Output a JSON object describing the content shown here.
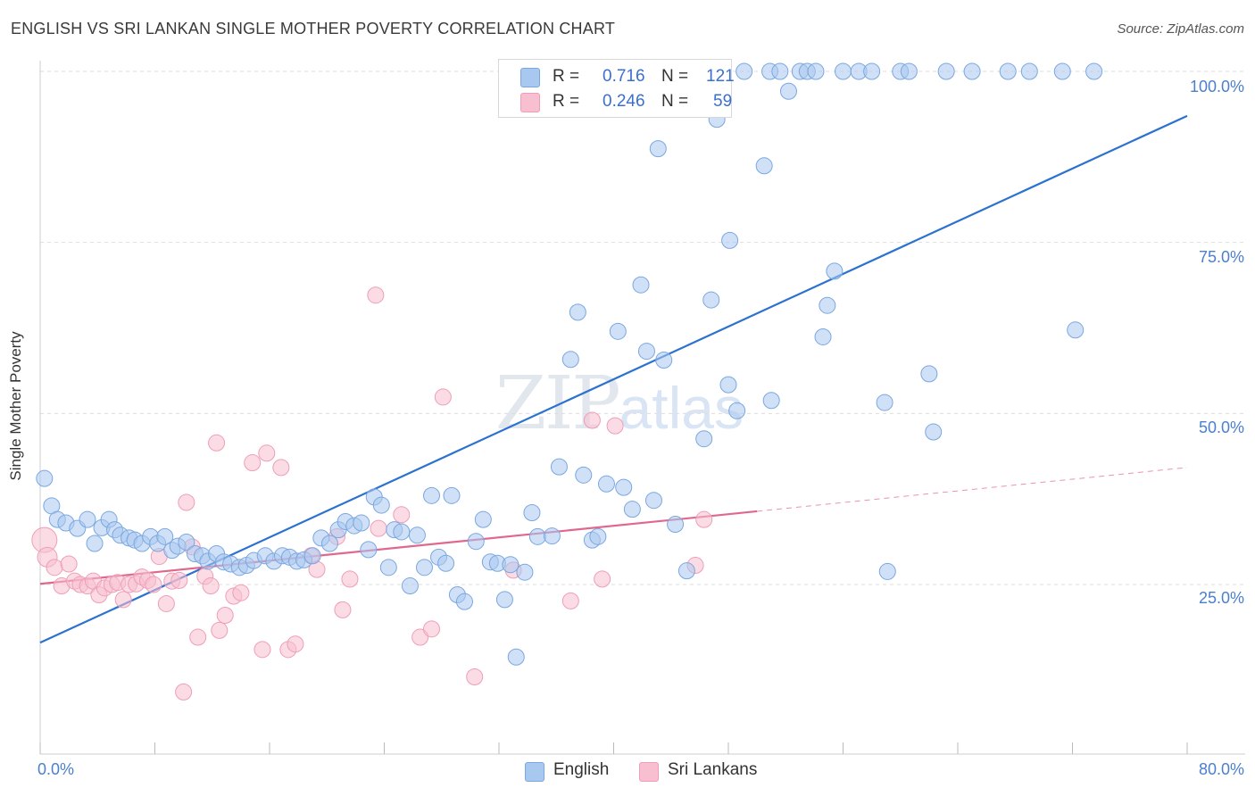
{
  "header": {
    "title": "ENGLISH VS SRI LANKAN SINGLE MOTHER POVERTY CORRELATION CHART",
    "source": "Source: ZipAtlas.com"
  },
  "watermark": {
    "zip": "ZIP",
    "atlas": "atlas"
  },
  "legend": {
    "english": {
      "r_label": "R =",
      "r_value": "0.716",
      "n_label": "N =",
      "n_value": "121"
    },
    "srilankan": {
      "r_label": "R =",
      "r_value": "0.246",
      "n_label": "N =",
      "n_value": "59"
    }
  },
  "bottom_legend": {
    "english": "English",
    "srilankan": "Sri Lankans"
  },
  "colors": {
    "english_fill": "#a9c8f0",
    "english_stroke": "#7aa7e0",
    "english_line": "#2b72d0",
    "srilankan_fill": "#f7bfd0",
    "srilankan_stroke": "#ef9db8",
    "srilankan_line": "#e0688e",
    "grid": "#dddddd",
    "tick_text": "#4a7fcf"
  },
  "chart_data": {
    "type": "scatter",
    "title": "ENGLISH VS SRI LANKAN SINGLE MOTHER POVERTY CORRELATION CHART",
    "xlabel": "",
    "ylabel": "Single Mother Poverty",
    "xlim": [
      0,
      80
    ],
    "ylim": [
      0,
      105
    ],
    "x_tick_labels": [
      "0.0%",
      "80.0%"
    ],
    "y_ticks": [
      25,
      50,
      75,
      100
    ],
    "y_tick_labels": [
      "25.0%",
      "50.0%",
      "75.0%",
      "100.0%"
    ],
    "grid": true,
    "series": [
      {
        "name": "English",
        "r": 0.716,
        "n": 121,
        "trend": {
          "x": [
            0,
            80
          ],
          "y": [
            16.5,
            93.5
          ]
        },
        "points": [
          [
            0.3,
            40.5
          ],
          [
            0.8,
            36.5
          ],
          [
            1.2,
            34.5
          ],
          [
            1.8,
            34
          ],
          [
            2.6,
            33.2
          ],
          [
            3.3,
            34.5
          ],
          [
            3.8,
            31
          ],
          [
            4.3,
            33.3
          ],
          [
            4.8,
            34.5
          ],
          [
            5.2,
            33
          ],
          [
            5.6,
            32.2
          ],
          [
            6.2,
            31.8
          ],
          [
            6.6,
            31.5
          ],
          [
            7.1,
            31
          ],
          [
            7.7,
            32
          ],
          [
            8.2,
            31
          ],
          [
            8.7,
            32
          ],
          [
            9.2,
            30
          ],
          [
            9.6,
            30.6
          ],
          [
            10.2,
            31.2
          ],
          [
            10.8,
            29.5
          ],
          [
            11.3,
            29.2
          ],
          [
            11.7,
            28.4
          ],
          [
            12.3,
            29.5
          ],
          [
            12.8,
            28.3
          ],
          [
            13.3,
            28
          ],
          [
            13.9,
            27.5
          ],
          [
            14.4,
            27.8
          ],
          [
            14.9,
            28.5
          ],
          [
            15.7,
            29.2
          ],
          [
            16.3,
            28.4
          ],
          [
            16.9,
            29.2
          ],
          [
            17.4,
            29
          ],
          [
            17.9,
            28.4
          ],
          [
            18.4,
            28.6
          ],
          [
            19.0,
            29.2
          ],
          [
            19.6,
            31.8
          ],
          [
            20.2,
            31
          ],
          [
            20.8,
            33
          ],
          [
            21.3,
            34.2
          ],
          [
            21.9,
            33.6
          ],
          [
            22.4,
            34
          ],
          [
            22.9,
            30.1
          ],
          [
            23.3,
            37.8
          ],
          [
            23.8,
            36.6
          ],
          [
            24.3,
            27.5
          ],
          [
            24.7,
            33
          ],
          [
            25.2,
            32.7
          ],
          [
            25.8,
            24.8
          ],
          [
            26.3,
            32.2
          ],
          [
            26.8,
            27.5
          ],
          [
            27.3,
            38
          ],
          [
            27.8,
            29
          ],
          [
            28.3,
            28.1
          ],
          [
            28.7,
            38
          ],
          [
            29.1,
            23.5
          ],
          [
            29.6,
            22.5
          ],
          [
            30.4,
            31.3
          ],
          [
            30.9,
            34.5
          ],
          [
            31.4,
            28.3
          ],
          [
            31.9,
            28.1
          ],
          [
            32.4,
            22.8
          ],
          [
            32.8,
            27.9
          ],
          [
            33.2,
            14.4
          ],
          [
            33.8,
            26.8
          ],
          [
            34.3,
            35.5
          ],
          [
            34.7,
            32
          ],
          [
            35.7,
            32.1
          ],
          [
            36.2,
            42.2
          ],
          [
            37.0,
            57.9
          ],
          [
            37.5,
            64.8
          ],
          [
            37.9,
            41
          ],
          [
            38.5,
            31.5
          ],
          [
            38.9,
            32
          ],
          [
            39.5,
            39.7
          ],
          [
            40.3,
            62
          ],
          [
            40.7,
            39.2
          ],
          [
            41.3,
            36
          ],
          [
            41.9,
            68.8
          ],
          [
            42.3,
            59.1
          ],
          [
            42.8,
            37.3
          ],
          [
            43.1,
            88.7
          ],
          [
            43.5,
            57.8
          ],
          [
            44.3,
            33.8
          ],
          [
            45.1,
            27
          ],
          [
            45.4,
            100
          ],
          [
            45.9,
            100
          ],
          [
            46.3,
            46.3
          ],
          [
            46.8,
            66.6
          ],
          [
            47.2,
            93
          ],
          [
            48.0,
            54.2
          ],
          [
            48.1,
            75.3
          ],
          [
            48.6,
            50.4
          ],
          [
            49.1,
            100
          ],
          [
            50.5,
            86.2
          ],
          [
            50.9,
            100
          ],
          [
            51.0,
            51.9
          ],
          [
            51.6,
            100
          ],
          [
            52.2,
            97.1
          ],
          [
            53.0,
            100
          ],
          [
            53.5,
            100
          ],
          [
            54.1,
            100
          ],
          [
            54.6,
            61.2
          ],
          [
            54.9,
            65.8
          ],
          [
            55.4,
            70.8
          ],
          [
            56.0,
            100
          ],
          [
            57.1,
            100
          ],
          [
            58.0,
            100
          ],
          [
            58.9,
            51.6
          ],
          [
            59.1,
            26.9
          ],
          [
            60.0,
            100
          ],
          [
            60.6,
            100
          ],
          [
            62.0,
            55.8
          ],
          [
            62.3,
            47.3
          ],
          [
            63.2,
            100
          ],
          [
            65.0,
            100
          ],
          [
            67.5,
            100
          ],
          [
            69.0,
            100
          ],
          [
            71.3,
            100
          ],
          [
            72.2,
            62.2
          ],
          [
            73.5,
            100
          ]
        ]
      },
      {
        "name": "Sri Lankans",
        "r": 0.246,
        "n": 59,
        "trend": {
          "x": [
            0,
            50
          ],
          "y": [
            25.1,
            35.7
          ]
        },
        "trend_dashed": {
          "x": [
            50,
            80
          ],
          "y": [
            35.7,
            42.1
          ]
        },
        "points": [
          [
            0.3,
            31.5
          ],
          [
            0.5,
            29
          ],
          [
            1.0,
            27.5
          ],
          [
            1.5,
            24.8
          ],
          [
            2.0,
            28
          ],
          [
            2.4,
            25.5
          ],
          [
            2.8,
            25
          ],
          [
            3.3,
            24.8
          ],
          [
            3.7,
            25.5
          ],
          [
            4.1,
            23.5
          ],
          [
            4.5,
            24.5
          ],
          [
            5.0,
            25
          ],
          [
            5.4,
            25.3
          ],
          [
            5.8,
            22.8
          ],
          [
            6.2,
            25
          ],
          [
            6.7,
            25.1
          ],
          [
            7.1,
            26.1
          ],
          [
            7.5,
            25.6
          ],
          [
            7.9,
            25
          ],
          [
            8.3,
            29.1
          ],
          [
            8.8,
            22.2
          ],
          [
            9.2,
            25.5
          ],
          [
            9.7,
            25.6
          ],
          [
            10.0,
            9.3
          ],
          [
            10.2,
            37
          ],
          [
            10.6,
            30.5
          ],
          [
            11.0,
            17.3
          ],
          [
            11.5,
            26.2
          ],
          [
            11.9,
            24.8
          ],
          [
            12.3,
            45.7
          ],
          [
            12.5,
            18.3
          ],
          [
            12.9,
            20.5
          ],
          [
            13.5,
            23.3
          ],
          [
            14.0,
            23.8
          ],
          [
            14.8,
            42.8
          ],
          [
            15.5,
            15.5
          ],
          [
            15.8,
            44.2
          ],
          [
            16.8,
            42.1
          ],
          [
            17.3,
            15.5
          ],
          [
            17.8,
            16.3
          ],
          [
            18.9,
            29.2
          ],
          [
            19.3,
            27.2
          ],
          [
            20.7,
            32
          ],
          [
            21.1,
            21.3
          ],
          [
            21.6,
            25.8
          ],
          [
            23.4,
            67.3
          ],
          [
            23.6,
            33.2
          ],
          [
            25.2,
            35.2
          ],
          [
            26.5,
            17.3
          ],
          [
            27.3,
            18.5
          ],
          [
            28.1,
            52.4
          ],
          [
            30.3,
            11.5
          ],
          [
            33.0,
            27.1
          ],
          [
            37.0,
            22.6
          ],
          [
            38.5,
            49
          ],
          [
            39.2,
            25.8
          ],
          [
            40.1,
            48.2
          ],
          [
            45.7,
            27.8
          ],
          [
            46.3,
            34.5
          ]
        ]
      }
    ]
  }
}
